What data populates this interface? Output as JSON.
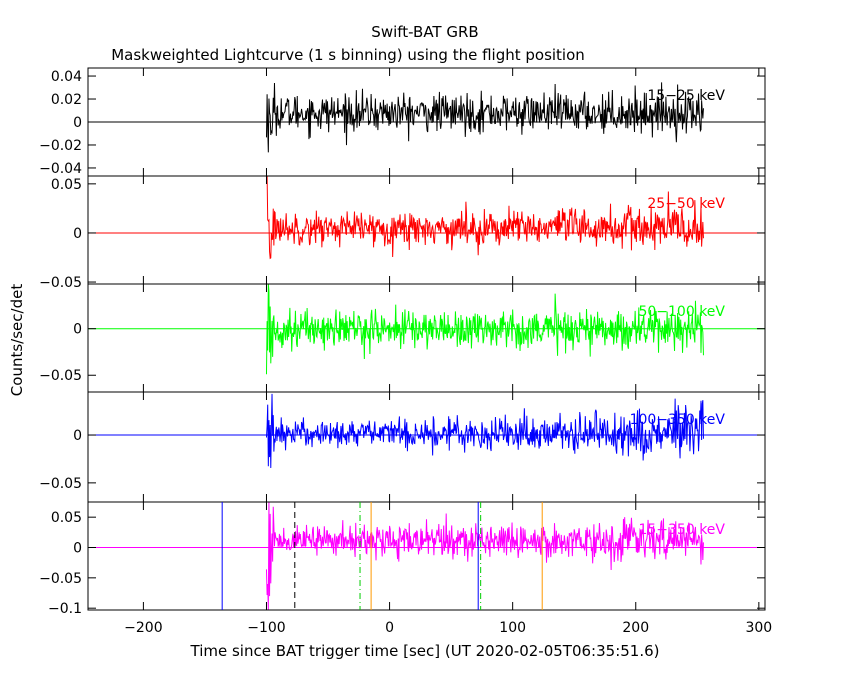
{
  "chart_data": {
    "type": "line",
    "title": "Swift-BAT GRB",
    "subtitle": "Maskweighted Lightcurve (1 s binning) using the flight position",
    "xlabel": "Time since BAT trigger time [sec] (UT 2020-02-05T06:35:51.6)",
    "ylabel": "Counts/sec/det",
    "xlim": [
      -245,
      305
    ],
    "x_ticks": [
      -200,
      -100,
      0,
      100,
      200,
      300
    ],
    "x_tick_labels": [
      "−200",
      "−100",
      "0",
      "100",
      "200",
      "300"
    ],
    "data_range": [
      -100,
      255
    ],
    "panels": [
      {
        "band": "15−25 keV",
        "color": "#000000",
        "ylim": [
          -0.047,
          0.047
        ],
        "y_ticks": [
          0.04,
          0.02,
          0,
          -0.02,
          -0.04
        ],
        "y_tick_labels": [
          "0.04",
          "0.02",
          "0",
          "−0.02",
          "−0.04"
        ],
        "noise_early": 0.008,
        "noise_late": 0.009,
        "offset": 0.008,
        "spike": 0.035
      },
      {
        "band": "25−50 keV",
        "color": "#ff0000",
        "ylim": [
          -0.052,
          0.058
        ],
        "y_ticks": [
          0.05,
          0,
          -0.05
        ],
        "y_tick_labels": [
          "0.05",
          "0",
          "−0.05"
        ],
        "noise_early": 0.008,
        "noise_late": 0.012,
        "offset": 0.005,
        "spike": 0.045
      },
      {
        "band": "50−100 keV",
        "color": "#00ff00",
        "ylim": [
          -0.068,
          0.048
        ],
        "y_ticks": [
          0,
          -0.05
        ],
        "y_tick_labels": [
          "0",
          "−0.05"
        ],
        "noise_early": 0.01,
        "noise_late": 0.012,
        "offset": 0.0,
        "spike": 0.05
      },
      {
        "band": "100−350 keV",
        "color": "#0000ff",
        "ylim": [
          -0.07,
          0.045
        ],
        "y_ticks": [
          0,
          -0.05
        ],
        "y_tick_labels": [
          "0",
          "−0.05"
        ],
        "noise_early": 0.007,
        "noise_late": 0.015,
        "offset": 0.002,
        "spike": 0.045
      },
      {
        "band": "15−350 keV",
        "color": "#ff00ff",
        "ylim": [
          -0.103,
          0.075
        ],
        "y_ticks": [
          0.05,
          0,
          -0.05,
          -0.1
        ],
        "y_tick_labels": [
          "0.05",
          "0",
          "−0.05",
          "−0.1"
        ],
        "noise_early": 0.012,
        "noise_late": 0.018,
        "offset": 0.012,
        "spike": 0.09
      }
    ],
    "markers": [
      {
        "x": -136,
        "color": "#0000ff",
        "style": "solid"
      },
      {
        "x": -77,
        "color": "#000000",
        "style": "dashed"
      },
      {
        "x": -24,
        "color": "#00cc00",
        "style": "dashdot"
      },
      {
        "x": -15,
        "color": "#ff9900",
        "style": "solid"
      },
      {
        "x": 72,
        "color": "#0000ff",
        "style": "solid"
      },
      {
        "x": 74,
        "color": "#00cc00",
        "style": "dashdot"
      },
      {
        "x": 124,
        "color": "#ff9900",
        "style": "solid"
      }
    ]
  }
}
